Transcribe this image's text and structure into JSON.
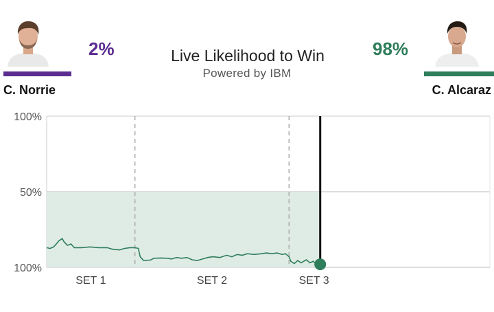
{
  "header": {
    "title": "Live Likelihood to Win",
    "subtitle": "Powered by IBM"
  },
  "players": {
    "left": {
      "name": "C. Norrie",
      "percent": "2%",
      "color": "#5c2d91",
      "avatar_icon": "player-portrait-icon"
    },
    "right": {
      "name": "C. Alcaraz",
      "percent": "98%",
      "color": "#2e7d5b",
      "avatar_icon": "player-portrait-icon"
    }
  },
  "chart_data": {
    "type": "area",
    "y_tick_labels": [
      "100%",
      "50%",
      "100%"
    ],
    "ylim": [
      0,
      100
    ],
    "set_labels": [
      "SET 1",
      "SET 2",
      "SET 3"
    ],
    "series": [
      {
        "color": "#2e7d5b",
        "fill": "#dfece6",
        "points": [
          [
            0,
            13
          ],
          [
            2,
            12.5
          ],
          [
            4,
            13.5
          ],
          [
            6,
            16
          ],
          [
            7,
            17.5
          ],
          [
            9,
            19
          ],
          [
            10,
            17
          ],
          [
            12,
            14.5
          ],
          [
            14,
            15.5
          ],
          [
            16,
            13
          ],
          [
            20,
            13
          ],
          [
            25,
            13.5
          ],
          [
            30,
            13
          ],
          [
            35,
            13
          ],
          [
            38,
            12
          ],
          [
            42,
            11.5
          ],
          [
            45,
            12.5
          ],
          [
            48,
            13
          ],
          [
            51,
            13
          ],
          [
            53,
            12.5
          ],
          [
            54,
            7
          ],
          [
            56,
            4.5
          ],
          [
            60,
            4.8
          ],
          [
            62,
            6
          ],
          [
            66,
            6.2
          ],
          [
            70,
            6
          ],
          [
            72,
            5.5
          ],
          [
            75,
            6.5
          ],
          [
            78,
            6
          ],
          [
            81,
            6.5
          ],
          [
            84,
            5
          ],
          [
            87,
            4.5
          ],
          [
            90,
            5.5
          ],
          [
            93,
            6.5
          ],
          [
            96,
            7
          ],
          [
            100,
            6.5
          ],
          [
            104,
            8
          ],
          [
            107,
            7
          ],
          [
            110,
            8.5
          ],
          [
            113,
            8
          ],
          [
            116,
            9
          ],
          [
            120,
            8.5
          ],
          [
            124,
            9
          ],
          [
            127,
            9.5
          ],
          [
            130,
            9
          ],
          [
            133,
            9.5
          ],
          [
            136,
            8.5
          ],
          [
            138,
            9
          ],
          [
            140,
            7
          ],
          [
            141,
            4
          ],
          [
            143,
            2.5
          ],
          [
            145,
            4.5
          ],
          [
            147,
            3
          ],
          [
            150,
            5
          ],
          [
            152,
            3
          ],
          [
            154,
            4
          ],
          [
            156,
            2
          ],
          [
            158,
            2
          ]
        ]
      }
    ],
    "x_range": [
      0,
      256
    ],
    "set_end_markers": [
      51,
      140,
      158
    ],
    "current_x": 158
  }
}
